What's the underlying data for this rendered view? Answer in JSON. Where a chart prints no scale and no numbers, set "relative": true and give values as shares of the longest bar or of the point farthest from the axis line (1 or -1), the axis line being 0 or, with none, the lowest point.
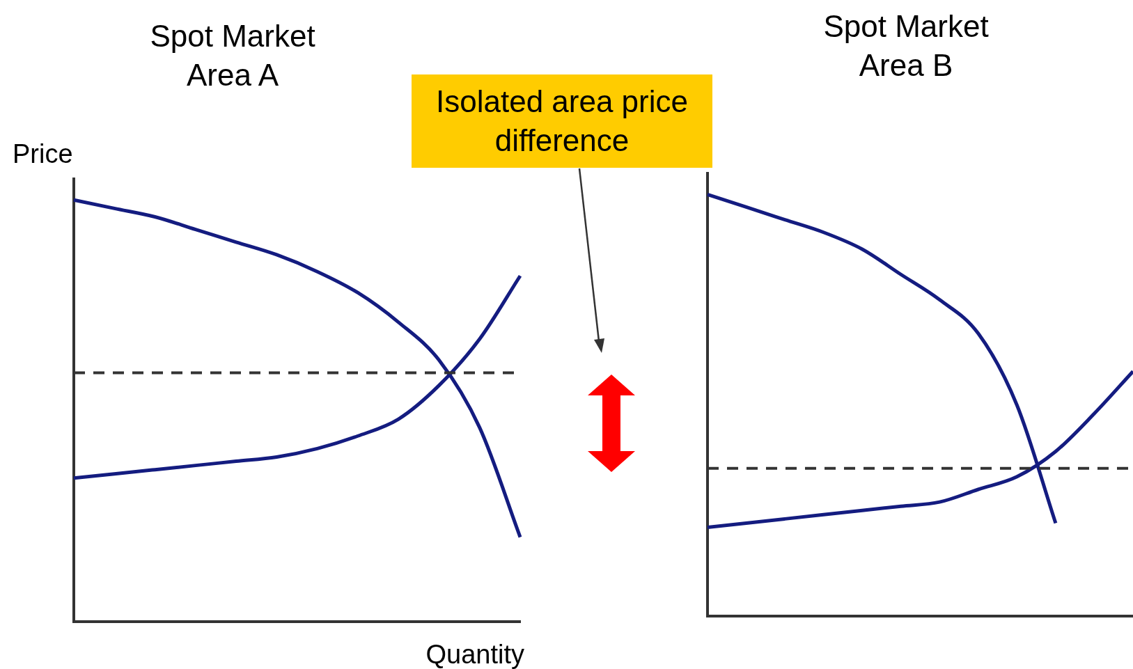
{
  "chart_data": [
    {
      "type": "line",
      "title": "Spot Market\nArea A",
      "xlabel": "Quantity",
      "ylabel": "Price",
      "relative": true,
      "categories": [
        null,
        null,
        null,
        null,
        null,
        null,
        null,
        null,
        null,
        null,
        null,
        null
      ],
      "series": [
        {
          "color": "#141c80",
          "values": [
            1.0,
            0.98,
            0.96,
            0.93,
            0.9,
            0.87,
            0.83,
            0.78,
            0.71,
            0.62,
            0.46,
            0.2
          ]
        },
        {
          "color": "#141c80",
          "values": [
            0.34,
            0.35,
            0.36,
            0.37,
            0.38,
            0.39,
            0.41,
            0.44,
            0.48,
            0.56,
            0.67,
            0.82
          ]
        }
      ],
      "ref_lines": [
        {
          "axis": "y",
          "value": 0.59,
          "color": "#333333",
          "line_style": "dashed"
        }
      ],
      "annotations": [
        "Isolated area price difference"
      ]
    },
    {
      "type": "line",
      "title": "Spot Market\nArea B",
      "relative": true,
      "categories": [
        null,
        null,
        null,
        null,
        null,
        null,
        null,
        null,
        null,
        null,
        null,
        null
      ],
      "series": [
        {
          "color": "#141c80",
          "values": [
            1.0,
            0.97,
            0.94,
            0.91,
            0.87,
            0.81,
            0.75,
            0.67,
            0.5,
            0.22,
            null,
            null
          ]
        },
        {
          "color": "#141c80",
          "values": [
            0.21,
            0.22,
            0.23,
            0.24,
            0.25,
            0.26,
            0.27,
            0.3,
            0.33,
            0.39,
            0.48,
            0.58
          ]
        }
      ],
      "ref_lines": [
        {
          "axis": "y",
          "value": 0.35,
          "color": "#333333",
          "line_style": "dashed"
        }
      ]
    }
  ]
}
